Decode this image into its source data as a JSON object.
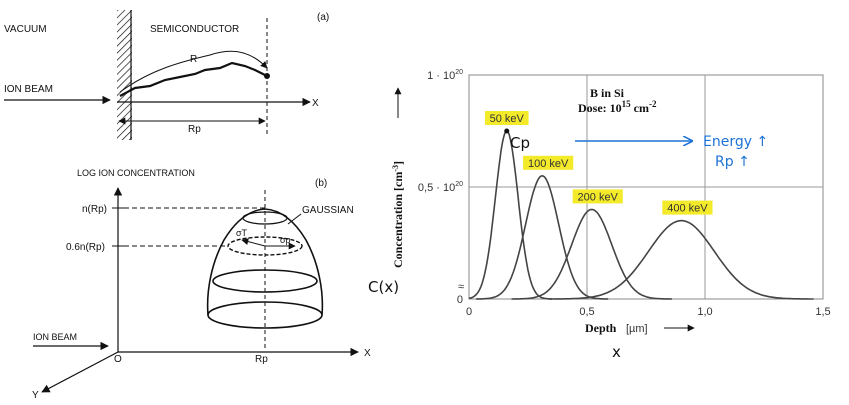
{
  "diagram_a": {
    "tag": "(a)",
    "vacuum": "VACUUM",
    "semiconductor": "SEMICONDUCTOR",
    "ion_beam": "ION BEAM",
    "r_label": "R",
    "rp_label": "Rp",
    "x_label": "X"
  },
  "diagram_b": {
    "y_axis_title": "LOG ION CONCENTRATION",
    "tag": "(b)",
    "n_rp": "n(Rp)",
    "n_06": "0.6n(Rp)",
    "gaussian": "GAUSSIAN",
    "sigma_t": "σT",
    "sigma_p": "σp",
    "ion_beam": "ION BEAM",
    "origin": "O",
    "rp": "Rp",
    "x": "X",
    "y": "Y"
  },
  "chart_data": {
    "type": "line",
    "title": "B in Si",
    "subtitle_prefix": "Dose: 10",
    "subtitle_exp": "15",
    "subtitle_unit": " cm",
    "subtitle_unit_exp": "-2",
    "xlabel": "Depth",
    "xunit": "[µm]",
    "ylabel_prefix": "Concentration [cm",
    "ylabel_exp": "-3",
    "ylabel_suffix": "]",
    "xlim": [
      0,
      1.5
    ],
    "ylim": [
      0,
      1.0
    ],
    "x_ticks": [
      0,
      0.5,
      1.0,
      1.5
    ],
    "x_tick_labels": [
      "0",
      "0,5",
      "1,0",
      "1,5"
    ],
    "y_ticks": [
      0,
      0.5,
      1.0
    ],
    "y_tick_labels": [
      "0",
      "0,5 · 10",
      "1 · 10"
    ],
    "y_tick_exp": "20",
    "y_break_symbol": "≈",
    "series": [
      {
        "name": "50 keV",
        "peak_x": 0.16,
        "peak_y": 0.75,
        "sigma": 0.048
      },
      {
        "name": "100 keV",
        "peak_x": 0.31,
        "peak_y": 0.55,
        "sigma": 0.07
      },
      {
        "name": "200 keV",
        "peak_x": 0.52,
        "peak_y": 0.4,
        "sigma": 0.085
      },
      {
        "name": "400 keV",
        "peak_x": 0.9,
        "peak_y": 0.35,
        "sigma": 0.14
      }
    ]
  },
  "annotations": {
    "cp": "Cp",
    "energy": "Energy ↑",
    "rp": "Rp ↑",
    "cx": "C(x)",
    "x": "x"
  },
  "colors": {
    "curve": "#444444",
    "highlight": "#f3ea2a",
    "blue": "#1e73d6",
    "grid": "#9a9a9a"
  }
}
